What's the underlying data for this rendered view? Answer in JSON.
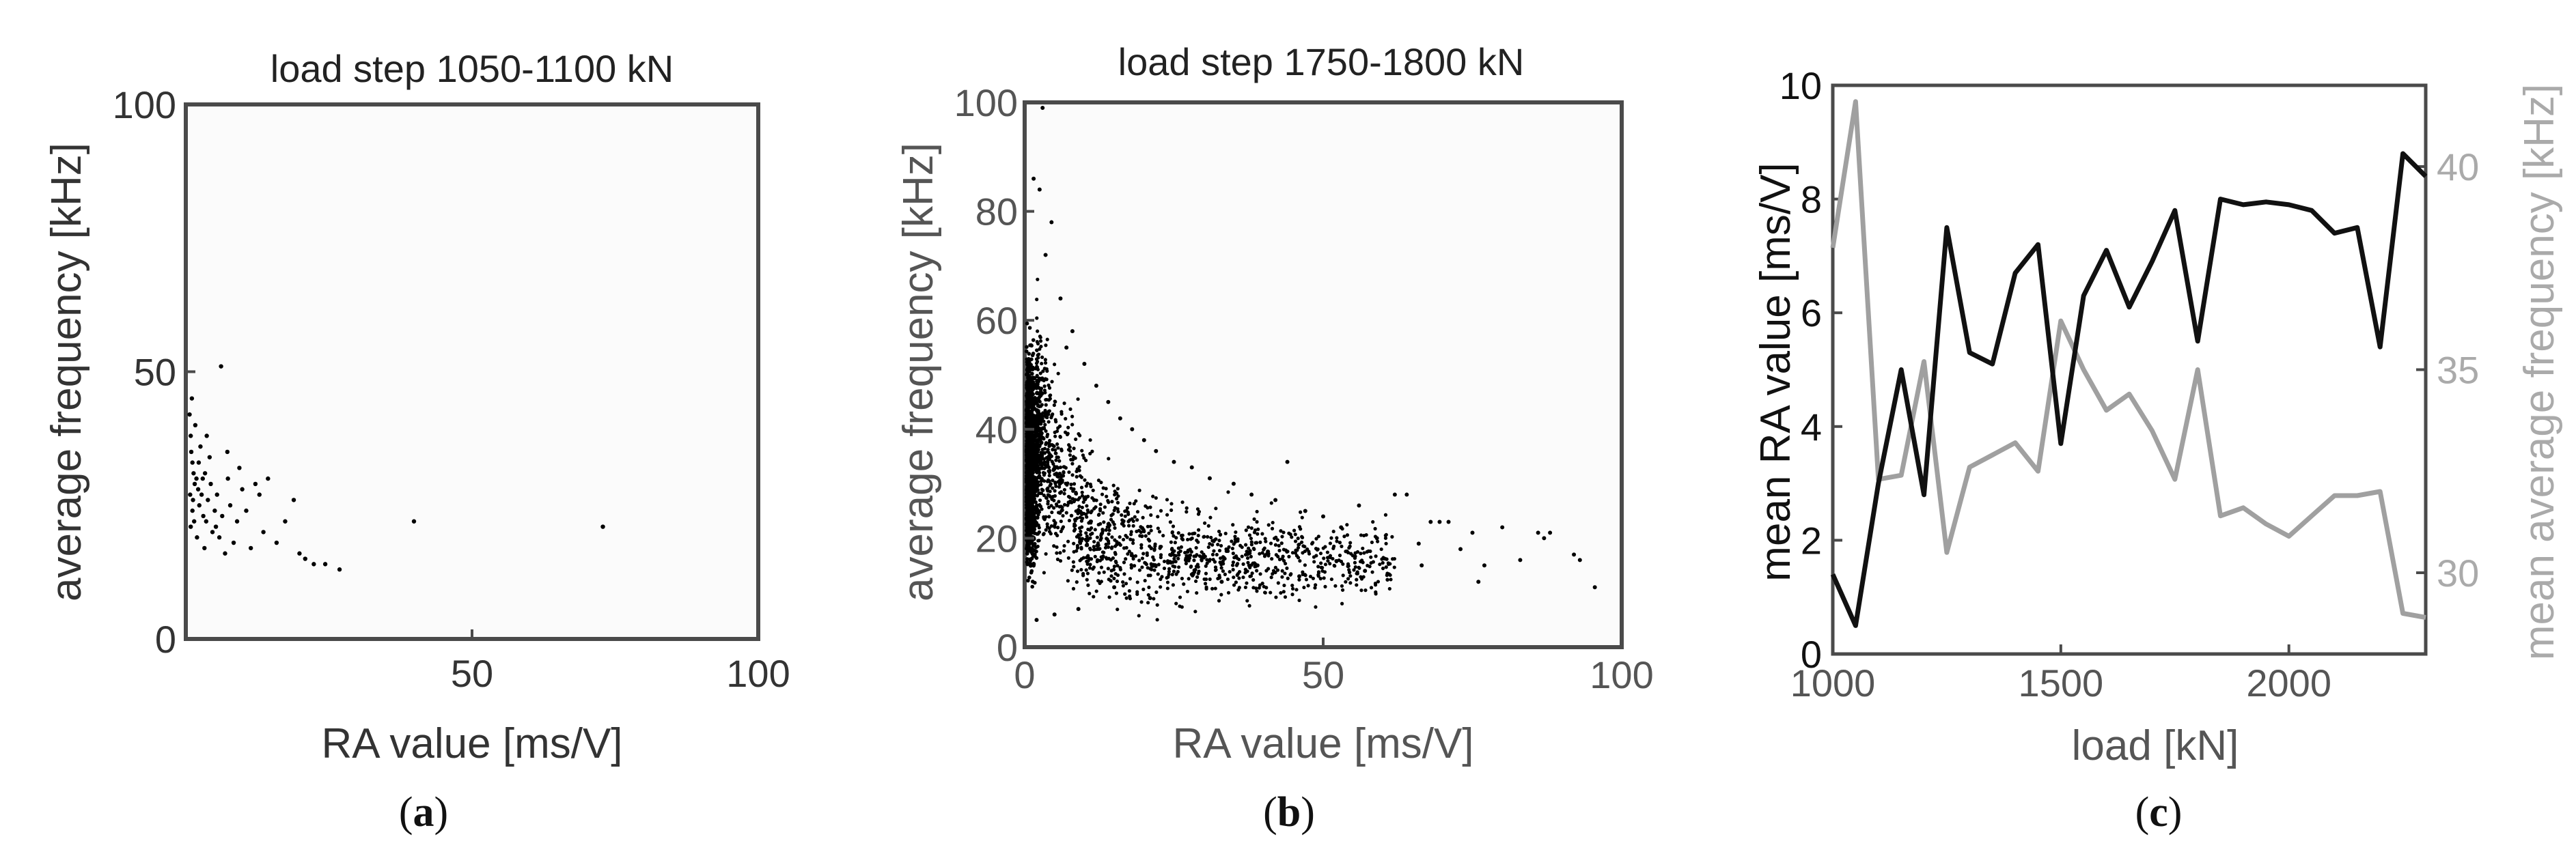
{
  "chart_data": [
    {
      "type": "scatter",
      "title": "load step 1050-1100 kN",
      "xlabel": "RA value [ms/V]",
      "ylabel": "average frequency [kHz]",
      "xlim": [
        0,
        100
      ],
      "ylim": [
        0,
        100
      ],
      "xticks": [
        "50",
        "100"
      ],
      "yticks": [
        "0",
        "50",
        "100"
      ],
      "grid": false,
      "caption": {
        "open": "(",
        "letter": "a",
        "close": ")"
      },
      "point_color": "#000000",
      "points": [
        [
          0.3,
          42
        ],
        [
          0.5,
          38
        ],
        [
          0.6,
          35
        ],
        [
          0.8,
          33
        ],
        [
          1.0,
          31
        ],
        [
          1.2,
          29
        ],
        [
          0.4,
          27
        ],
        [
          0.9,
          26
        ],
        [
          1.5,
          30
        ],
        [
          1.8,
          28
        ],
        [
          2.0,
          25
        ],
        [
          2.4,
          27
        ],
        [
          2.7,
          23
        ],
        [
          3.0,
          31
        ],
        [
          3.2,
          22
        ],
        [
          3.5,
          26
        ],
        [
          4.0,
          29
        ],
        [
          4.3,
          20
        ],
        [
          4.7,
          24
        ],
        [
          5.1,
          27
        ],
        [
          5.5,
          19
        ],
        [
          6.0,
          23
        ],
        [
          0.7,
          45
        ],
        [
          1.3,
          40
        ],
        [
          2.2,
          36
        ],
        [
          3.8,
          34
        ],
        [
          5.8,
          51
        ],
        [
          7.0,
          30
        ],
        [
          7.4,
          25
        ],
        [
          8.0,
          18
        ],
        [
          8.6,
          22
        ],
        [
          9.5,
          28
        ],
        [
          10.2,
          24
        ],
        [
          11.0,
          17
        ],
        [
          12.5,
          27
        ],
        [
          13.2,
          20
        ],
        [
          14.0,
          30
        ],
        [
          15.5,
          18
        ],
        [
          17.0,
          22
        ],
        [
          18.5,
          26
        ],
        [
          19.5,
          16
        ],
        [
          20.5,
          15
        ],
        [
          22.0,
          14
        ],
        [
          24.0,
          14
        ],
        [
          26.5,
          13
        ],
        [
          39.5,
          22
        ],
        [
          72.5,
          21
        ],
        [
          1.1,
          22
        ],
        [
          1.6,
          19
        ],
        [
          2.9,
          17
        ],
        [
          0.5,
          21
        ],
        [
          6.5,
          16
        ],
        [
          9.0,
          32
        ],
        [
          3.3,
          38
        ],
        [
          1.9,
          33
        ],
        [
          4.9,
          21
        ],
        [
          0.8,
          24
        ],
        [
          2.6,
          30
        ],
        [
          6.9,
          35
        ],
        [
          11.8,
          29
        ]
      ]
    },
    {
      "type": "scatter",
      "title": "load step 1750-1800 kN",
      "xlabel": "RA value [ms/V]",
      "ylabel": "average frequency [kHz]",
      "xlim": [
        0,
        100
      ],
      "ylim": [
        0,
        100
      ],
      "xticks": [
        "0",
        "50",
        "100"
      ],
      "yticks": [
        "0",
        "20",
        "40",
        "60",
        "80",
        "100"
      ],
      "grid": false,
      "caption": {
        "open": "(",
        "letter": "b",
        "close": ")"
      },
      "point_color": "#000000",
      "highlight_points": [
        [
          3,
          99
        ],
        [
          1.5,
          86
        ],
        [
          2.5,
          84
        ],
        [
          4.5,
          78
        ],
        [
          3.5,
          72
        ],
        [
          6.0,
          64
        ],
        [
          8.0,
          58
        ],
        [
          7.0,
          55
        ],
        [
          10.0,
          52
        ],
        [
          12.0,
          48
        ],
        [
          14.0,
          45
        ],
        [
          16.0,
          42
        ],
        [
          18.0,
          40
        ],
        [
          20.0,
          38
        ],
        [
          22.0,
          36
        ],
        [
          25.0,
          34
        ],
        [
          28.0,
          33
        ],
        [
          31.0,
          31
        ],
        [
          35.0,
          30
        ],
        [
          38.0,
          28
        ],
        [
          42.0,
          27
        ],
        [
          44.0,
          34
        ],
        [
          47.0,
          25
        ],
        [
          50.0,
          24
        ],
        [
          53.0,
          22
        ],
        [
          56.0,
          26
        ],
        [
          59.0,
          20
        ],
        [
          62.0,
          28
        ],
        [
          64.0,
          28
        ],
        [
          66.0,
          19
        ],
        [
          68.0,
          23
        ],
        [
          69.5,
          23
        ],
        [
          71.0,
          23
        ],
        [
          73.0,
          18
        ],
        [
          75.0,
          21
        ],
        [
          77.0,
          15
        ],
        [
          80.0,
          22
        ],
        [
          86.0,
          21
        ],
        [
          87.0,
          20
        ],
        [
          88.0,
          21
        ],
        [
          92.0,
          17
        ],
        [
          93.0,
          16
        ],
        [
          95.5,
          11
        ],
        [
          57.0,
          14
        ],
        [
          46.0,
          13
        ],
        [
          39.0,
          15
        ],
        [
          33.0,
          12
        ],
        [
          27.0,
          16
        ],
        [
          21.0,
          9
        ],
        [
          15.0,
          11
        ],
        [
          9.0,
          7
        ],
        [
          5.0,
          6
        ],
        [
          2.0,
          5
        ],
        [
          66.5,
          15
        ],
        [
          83.0,
          16
        ],
        [
          76.0,
          12
        ]
      ],
      "cloud": {
        "points_described": "dense scatter concentrated at RA < 10 ms/V, frequency 10-80 kHz, tapering toward 10-30 kHz at higher RA"
      }
    },
    {
      "type": "line",
      "xlabel": "load [kN]",
      "ylabel": "mean RA value [ms/V]",
      "ylabel_right": "mean average frequency [kHz]",
      "xlim": [
        1000,
        2300
      ],
      "ylim": [
        0,
        10
      ],
      "ylim_right": [
        28,
        42
      ],
      "xticks": [
        "1000",
        "1500",
        "2000"
      ],
      "yticks": [
        "0",
        "2",
        "4",
        "6",
        "8",
        "10"
      ],
      "yticks_right": [
        "30",
        "35",
        "40"
      ],
      "grid": false,
      "caption": {
        "open": "(",
        "letter": "c",
        "close": ")"
      },
      "x": [
        1000,
        1050,
        1100,
        1150,
        1200,
        1250,
        1300,
        1350,
        1400,
        1450,
        1500,
        1550,
        1600,
        1650,
        1700,
        1750,
        1800,
        1850,
        1900,
        1950,
        2000,
        2050,
        2100,
        2150,
        2200,
        2250,
        2300
      ],
      "series": [
        {
          "axis": "left",
          "color": "#111111",
          "values": [
            1.4,
            0.5,
            3.0,
            5.0,
            2.8,
            7.5,
            5.3,
            5.1,
            6.7,
            7.2,
            3.7,
            6.3,
            7.1,
            6.1,
            6.9,
            7.8,
            5.5,
            8.0,
            7.9,
            7.95,
            7.9,
            7.8,
            7.4,
            7.5,
            5.4,
            8.8,
            8.4
          ]
        },
        {
          "axis": "right",
          "color": "#a0a0a0",
          "values": [
            38.0,
            41.6,
            32.3,
            32.4,
            35.2,
            30.5,
            32.6,
            32.9,
            33.2,
            32.5,
            36.2,
            35.0,
            34.0,
            34.4,
            33.5,
            32.3,
            35.0,
            31.4,
            31.6,
            31.2,
            30.9,
            31.4,
            31.9,
            31.9,
            32.0,
            29.0,
            28.9
          ]
        }
      ]
    }
  ]
}
